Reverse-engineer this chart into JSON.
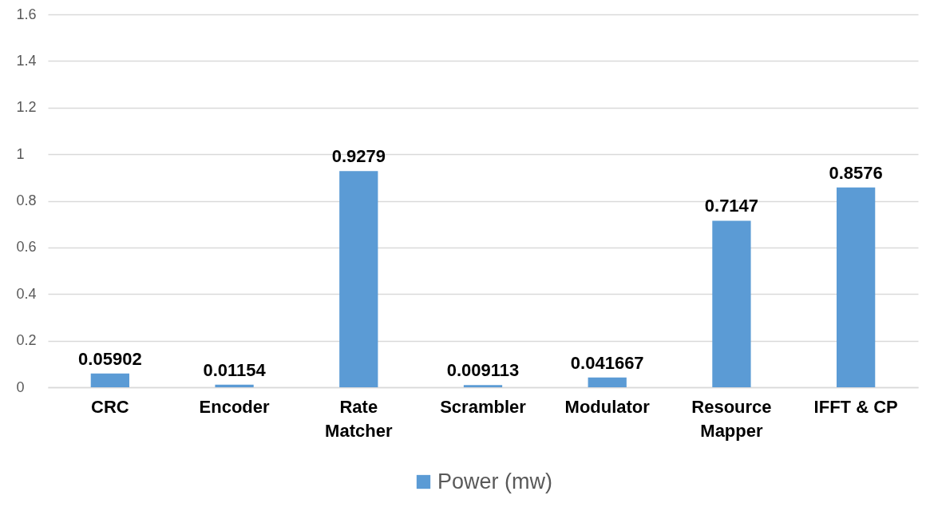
{
  "chart_data": {
    "type": "bar",
    "categories": [
      "CRC",
      "Encoder",
      "Rate Matcher",
      "Scrambler",
      "Modulator",
      "Resource Mapper",
      "IFFT & CP"
    ],
    "series": [
      {
        "name": "Power (mw)",
        "color": "#5b9bd5",
        "values": [
          0.05902,
          0.01154,
          0.9279,
          0.009113,
          0.041667,
          0.7147,
          0.8576
        ]
      }
    ],
    "ylim": [
      0,
      1.6
    ],
    "yticks": [
      0,
      0.2,
      0.4,
      0.6,
      0.8,
      1,
      1.2,
      1.4,
      1.6
    ],
    "grid": "y",
    "legend": "bottom",
    "data_labels": true
  }
}
